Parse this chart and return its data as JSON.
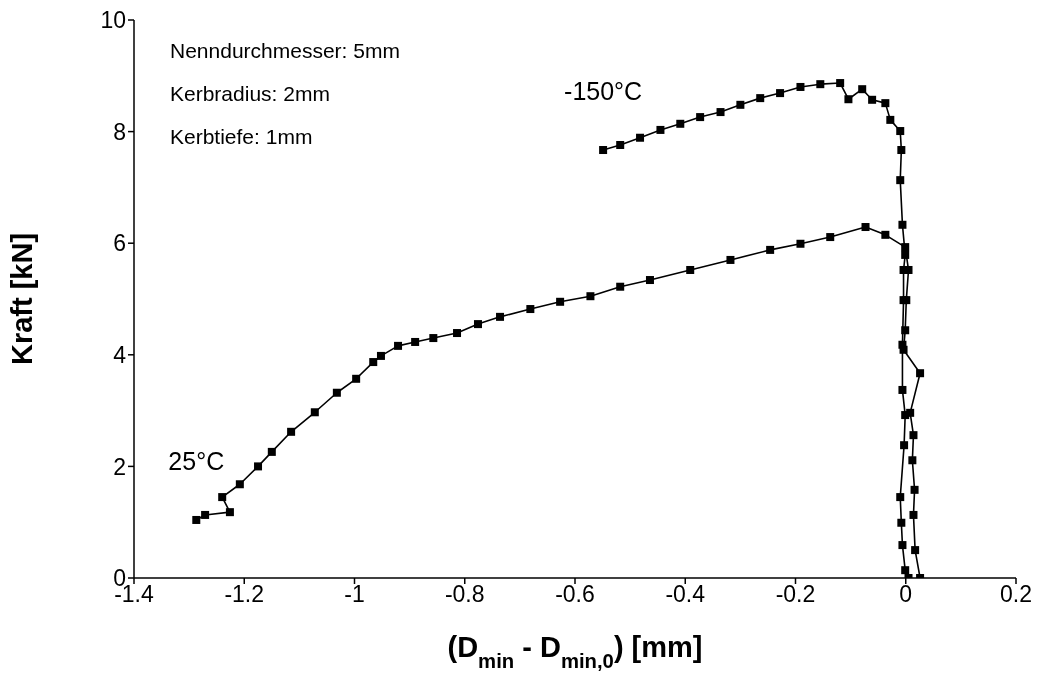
{
  "chart_data": {
    "type": "line",
    "xlabel": "(D$_{min}$ - D$_{min,0}$) [mm]",
    "ylabel": "Kraft [kN]",
    "xlim": [
      -1.4,
      0.2
    ],
    "xticks": [
      -1.4,
      -1.2,
      -1,
      -0.8,
      -0.6,
      -0.4,
      -0.2,
      0,
      0.2
    ],
    "ylim": [
      0,
      10
    ],
    "yticks": [
      0,
      2,
      4,
      6,
      8,
      10
    ],
    "grid": false,
    "legend": false,
    "marker": "square",
    "line_style": "solid",
    "annotations": [
      "Nenndurchmesser: 5mm",
      "Kerbradius: 2mm",
      "Kerbtiefe: 1mm"
    ],
    "series": [
      {
        "name": "-150°C",
        "color": "#000000",
        "x": [
          -0.549,
          -0.518,
          -0.482,
          -0.445,
          -0.409,
          -0.373,
          -0.336,
          -0.3,
          -0.264,
          -0.228,
          -0.191,
          -0.155,
          -0.119,
          -0.104,
          -0.079,
          -0.061,
          -0.037,
          -0.028,
          -0.01,
          -0.008,
          -0.01,
          -0.006,
          -0.001,
          -0.004,
          -0.004,
          -0.006,
          -0.006,
          -0.001,
          -0.003,
          -0.01,
          -0.008,
          -0.006,
          -0.001,
          0.005
        ],
        "values": [
          7.67,
          7.76,
          7.89,
          8.03,
          8.14,
          8.26,
          8.35,
          8.48,
          8.6,
          8.69,
          8.8,
          8.85,
          8.87,
          8.58,
          8.76,
          8.57,
          8.51,
          8.21,
          8.01,
          7.67,
          7.13,
          6.33,
          5.79,
          5.52,
          4.98,
          4.18,
          3.37,
          2.92,
          2.38,
          1.45,
          0.99,
          0.59,
          0.14,
          0
        ]
      },
      {
        "name": "25°C",
        "color": "#000000",
        "x": [
          -1.287,
          -1.271,
          -1.226,
          -1.24,
          -1.208,
          -1.175,
          -1.15,
          -1.115,
          -1.072,
          -1.032,
          -0.997,
          -0.966,
          -0.952,
          -0.921,
          -0.89,
          -0.857,
          -0.814,
          -0.776,
          -0.736,
          -0.681,
          -0.627,
          -0.572,
          -0.518,
          -0.464,
          -0.391,
          -0.318,
          -0.246,
          -0.191,
          -0.137,
          -0.073,
          -0.037,
          -0.001,
          0.005,
          0.001,
          -0.001,
          -0.004,
          0.026,
          0.008,
          0.014,
          0.012,
          0.016,
          0.014,
          0.017,
          0.026
        ],
        "values": [
          1.04,
          1.13,
          1.18,
          1.45,
          1.68,
          2.0,
          2.26,
          2.62,
          2.97,
          3.32,
          3.57,
          3.87,
          3.98,
          4.16,
          4.23,
          4.3,
          4.39,
          4.55,
          4.68,
          4.82,
          4.95,
          5.05,
          5.22,
          5.34,
          5.52,
          5.7,
          5.88,
          5.99,
          6.11,
          6.29,
          6.15,
          5.93,
          5.52,
          4.98,
          4.44,
          4.09,
          3.67,
          2.96,
          2.56,
          2.11,
          1.58,
          1.13,
          0.5,
          0
        ]
      }
    ]
  }
}
